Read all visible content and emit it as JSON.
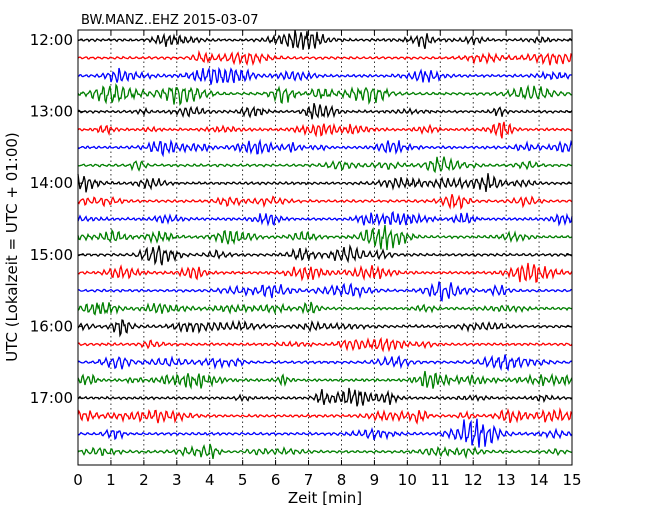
{
  "chart_data": {
    "type": "line",
    "title": "BW.MANZ..EHZ 2015-03-07",
    "xlabel": "Zeit  [min]",
    "ylabel": "UTC (Lokalzeit = UTC + 01:00)",
    "xlim": [
      0,
      15
    ],
    "x_ticks": [
      "0",
      "1",
      "2",
      "3",
      "4",
      "5",
      "6",
      "7",
      "8",
      "9",
      "10",
      "11",
      "12",
      "13",
      "14",
      "15"
    ],
    "y_tick_labels": [
      "12:00",
      "13:00",
      "14:00",
      "15:00",
      "16:00",
      "17:00"
    ],
    "trace_start_times": [
      "12:00",
      "12:15",
      "12:30",
      "12:45",
      "13:00",
      "13:15",
      "13:30",
      "13:45",
      "14:00",
      "14:15",
      "14:30",
      "14:45",
      "15:00",
      "15:15",
      "15:30",
      "15:45",
      "16:00",
      "16:15",
      "16:30",
      "16:45",
      "17:00",
      "17:15",
      "17:30",
      "17:45"
    ],
    "trace_colors": [
      "#000000",
      "#ff0000",
      "#0000ff",
      "#007f00"
    ],
    "grid": "vertical dotted lines at each minute"
  }
}
